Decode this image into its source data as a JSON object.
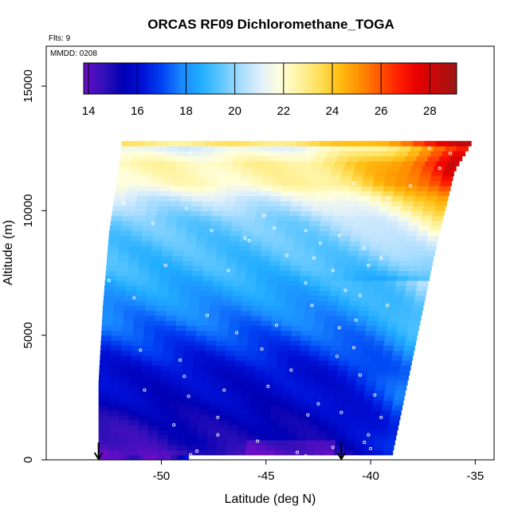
{
  "chart_data": {
    "type": "heatmap",
    "title": "ORCAS RF09 Dichloromethane_TOGA",
    "annotations": {
      "flights": "Flts: 9",
      "mmdd": "MMDD: 0208"
    },
    "xlabel": "Latitude (deg N)",
    "ylabel": "Altitude (m)",
    "xlim": [
      -55.5,
      -34.1
    ],
    "ylim": [
      0,
      16600
    ],
    "xticks": [
      -50,
      -45,
      -40,
      -35
    ],
    "xtick_labels": [
      "-50",
      "-45",
      "-40",
      "-35"
    ],
    "yticks": [
      0,
      5000,
      10000,
      15000
    ],
    "ytick_labels": [
      "0",
      "5000",
      "10000",
      "15000"
    ],
    "colorbar": {
      "min": 13.8,
      "max": 29.1,
      "ticks": [
        14,
        16,
        18,
        20,
        22,
        24,
        26,
        28
      ],
      "tick_labels": [
        "14",
        "16",
        "18",
        "20",
        "22",
        "24",
        "26",
        "28"
      ],
      "colors": [
        "#6a0dc8",
        "#3210b8",
        "#0000b4",
        "#0010d6",
        "#0044f4",
        "#1a88ff",
        "#21adff",
        "#60c7ff",
        "#a6dcff",
        "#dfeffc",
        "#ffffdc",
        "#fff3a0",
        "#ffdf5a",
        "#ffbe14",
        "#ff9200",
        "#ff5a00",
        "#ff2000",
        "#e60000",
        "#c40a0a",
        "#9b1515"
      ]
    },
    "curtain": {
      "band_top_altitude": 12400,
      "band_height": 200,
      "bottom_edge": [
        [
          -53.0,
          3000
        ],
        [
          -52.8,
          6000
        ],
        [
          -52.5,
          9000
        ],
        [
          -51.9,
          12400
        ]
      ],
      "top_right_edge": [
        [
          -48.7,
          0
        ],
        [
          -39.0,
          0
        ],
        [
          -38.0,
          4000
        ],
        [
          -37.0,
          8000
        ],
        [
          -36.0,
          11500
        ],
        [
          -35.2,
          12600
        ]
      ],
      "profile": [
        [
          0,
          14.4
        ],
        [
          500,
          15.0
        ],
        [
          1500,
          15.3
        ],
        [
          2500,
          15.8
        ],
        [
          3500,
          16.0
        ],
        [
          4500,
          16.8
        ],
        [
          5500,
          17.6
        ],
        [
          6500,
          18.3
        ],
        [
          7500,
          18.9
        ],
        [
          8500,
          19.2
        ],
        [
          9500,
          19.6
        ],
        [
          10300,
          20.6
        ],
        [
          11000,
          22.1
        ],
        [
          11800,
          22.4
        ],
        [
          12400,
          21.2
        ],
        [
          12600,
          23.0
        ]
      ],
      "north_boost": 5.5
    },
    "samples": [
      [
        -48.6,
        200
      ],
      [
        -48.3,
        350
      ],
      [
        -43.5,
        300
      ],
      [
        -43.1,
        150
      ],
      [
        -41.8,
        500
      ],
      [
        -40.7,
        120
      ],
      [
        -40.0,
        450
      ],
      [
        -40.3,
        700
      ],
      [
        -45.4,
        750
      ],
      [
        -47.3,
        1000
      ],
      [
        -40.1,
        1000
      ],
      [
        -49.4,
        1400
      ],
      [
        -39.5,
        1700
      ],
      [
        -47.3,
        1700
      ],
      [
        -43.0,
        1800
      ],
      [
        -41.4,
        1900
      ],
      [
        -42.5,
        2250
      ],
      [
        -48.7,
        2550
      ],
      [
        -39.8,
        2600
      ],
      [
        -50.8,
        2800
      ],
      [
        -47.0,
        2800
      ],
      [
        -44.9,
        2950
      ],
      [
        -48.9,
        3350
      ],
      [
        -40.5,
        3400
      ],
      [
        -43.8,
        3600
      ],
      [
        -49.1,
        4000
      ],
      [
        -41.6,
        4150
      ],
      [
        -45.2,
        4450
      ],
      [
        -40.8,
        4500
      ],
      [
        -46.4,
        5100
      ],
      [
        -41.5,
        5300
      ],
      [
        -44.5,
        5400
      ],
      [
        -40.7,
        5600
      ],
      [
        -47.8,
        5800
      ],
      [
        -42.8,
        6200
      ],
      [
        -39.2,
        6200
      ],
      [
        -51.3,
        6500
      ],
      [
        -40.5,
        6600
      ],
      [
        -41.2,
        6800
      ],
      [
        -43.1,
        7100
      ],
      [
        -52.5,
        7200
      ],
      [
        -46.8,
        7600
      ],
      [
        -41.8,
        7600
      ],
      [
        -49.8,
        7800
      ],
      [
        -40.1,
        7800
      ],
      [
        -42.7,
        8100
      ],
      [
        -39.5,
        8100
      ],
      [
        -44.0,
        8200
      ],
      [
        -42.4,
        8700
      ],
      [
        -46.0,
        8900
      ],
      [
        -41.5,
        9000
      ],
      [
        -40.3,
        8500
      ],
      [
        -50.4,
        9500
      ],
      [
        -45.1,
        9800
      ],
      [
        -41.9,
        10500
      ],
      [
        -39.2,
        10500
      ],
      [
        -51.8,
        10300
      ],
      [
        -48.8,
        10100
      ],
      [
        -43.7,
        10700
      ],
      [
        -40.8,
        11100
      ],
      [
        -38.1,
        11000
      ],
      [
        -36.7,
        11700
      ],
      [
        -36.2,
        12300
      ],
      [
        -51.0,
        12200
      ],
      [
        -48.6,
        12300
      ],
      [
        -43.0,
        12100
      ],
      [
        -44.6,
        9300
      ],
      [
        -47.6,
        9200
      ],
      [
        -43.1,
        9200
      ],
      [
        -45.8,
        8800
      ],
      [
        -51.0,
        4400
      ],
      [
        -37.2,
        12500
      ]
    ],
    "arrows": [
      {
        "lat": -53.0,
        "alt_top": 700,
        "alt_bottom": 0
      },
      {
        "lat": -41.4,
        "alt_top": 700,
        "alt_bottom": 0
      }
    ]
  }
}
